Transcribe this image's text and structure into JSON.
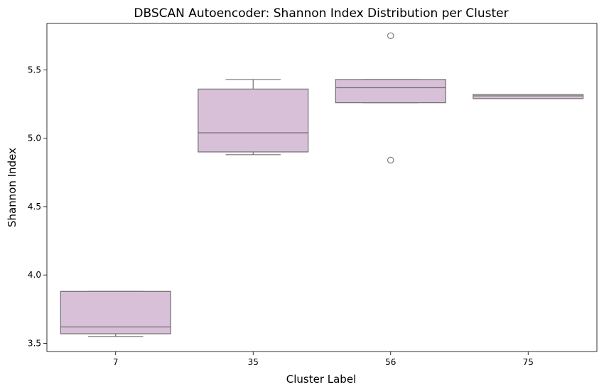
{
  "chart_data": {
    "type": "box",
    "title": "DBSCAN Autoencoder: Shannon Index Distribution per Cluster",
    "xlabel": "Cluster Label",
    "ylabel": "Shannon Index",
    "ylim": [
      3.44,
      5.84
    ],
    "yticks": [
      3.5,
      4.0,
      4.5,
      5.0,
      5.5
    ],
    "ytick_labels": [
      "3.5",
      "4.0",
      "4.5",
      "5.0",
      "5.5"
    ],
    "categories": [
      "7",
      "35",
      "56",
      "75"
    ],
    "box_color": "#d8c0d8",
    "line_color": "#707070",
    "grid": false,
    "legend": "none",
    "boxes": [
      {
        "category": "7",
        "whisker_low": 3.55,
        "q1": 3.57,
        "median": 3.62,
        "q3": 3.88,
        "whisker_high": 3.88,
        "outliers": []
      },
      {
        "category": "35",
        "whisker_low": 4.88,
        "q1": 4.9,
        "median": 5.04,
        "q3": 5.36,
        "whisker_high": 5.43,
        "outliers": []
      },
      {
        "category": "56",
        "whisker_low": 5.26,
        "q1": 5.26,
        "median": 5.37,
        "q3": 5.43,
        "whisker_high": 5.43,
        "outliers": [
          4.84,
          5.75
        ]
      },
      {
        "category": "75",
        "whisker_low": 5.29,
        "q1": 5.29,
        "median": 5.31,
        "q3": 5.32,
        "whisker_high": 5.32,
        "outliers": []
      }
    ]
  }
}
